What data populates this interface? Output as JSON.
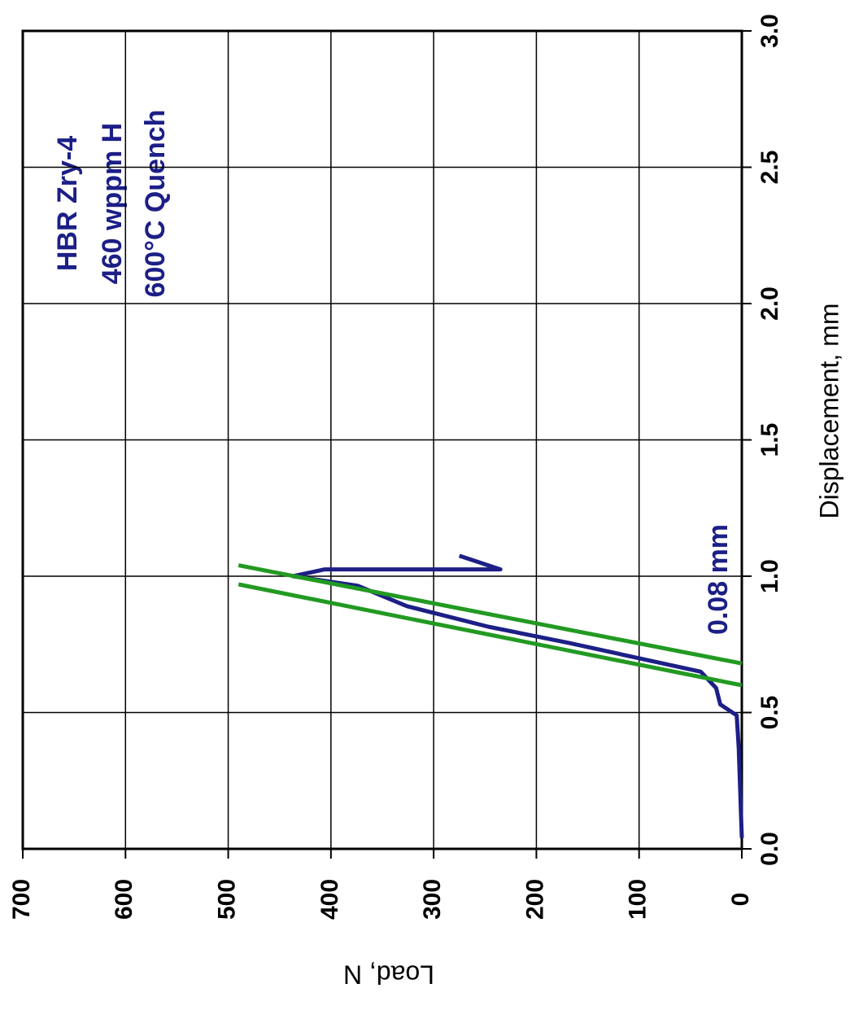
{
  "chart_data": {
    "type": "line",
    "x_label": "Displacement, mm",
    "y_label": "Load, N",
    "annotations": [
      "HBR Zry-4",
      "460 wppm H",
      "600°C Quench",
      "0.08 mm"
    ],
    "xlim": [
      0,
      3
    ],
    "ylim": [
      0,
      700
    ],
    "xticks": [
      {
        "value": 0,
        "label": "0.0"
      },
      {
        "value": 0.5,
        "label": "0.5"
      },
      {
        "value": 1,
        "label": "1.0"
      },
      {
        "value": 1.5,
        "label": "1.5"
      },
      {
        "value": 2,
        "label": "2.0"
      },
      {
        "value": 2.5,
        "label": "2.5"
      },
      {
        "value": 3,
        "label": "3.0"
      }
    ],
    "yticks": [
      0,
      100,
      200,
      300,
      400,
      500,
      600,
      700
    ],
    "grid": true,
    "series": [
      {
        "color": "#1c1f86",
        "x": [
          0.04,
          0.37,
          0.49,
          0.53,
          0.59,
          0.65,
          0.755,
          0.815,
          0.89,
          0.965,
          1.0,
          1.025,
          1.025,
          1.075
        ],
        "values": [
          0,
          3,
          5,
          21,
          25,
          40,
          168,
          247,
          326,
          374,
          437,
          406,
          235,
          275
        ]
      },
      {
        "color": "#229a22",
        "x": [
          0.97,
          0.6
        ],
        "values": [
          490,
          0
        ]
      },
      {
        "color": "#229a22",
        "x": [
          1.04,
          0.68
        ],
        "values": [
          490,
          0
        ]
      }
    ]
  }
}
